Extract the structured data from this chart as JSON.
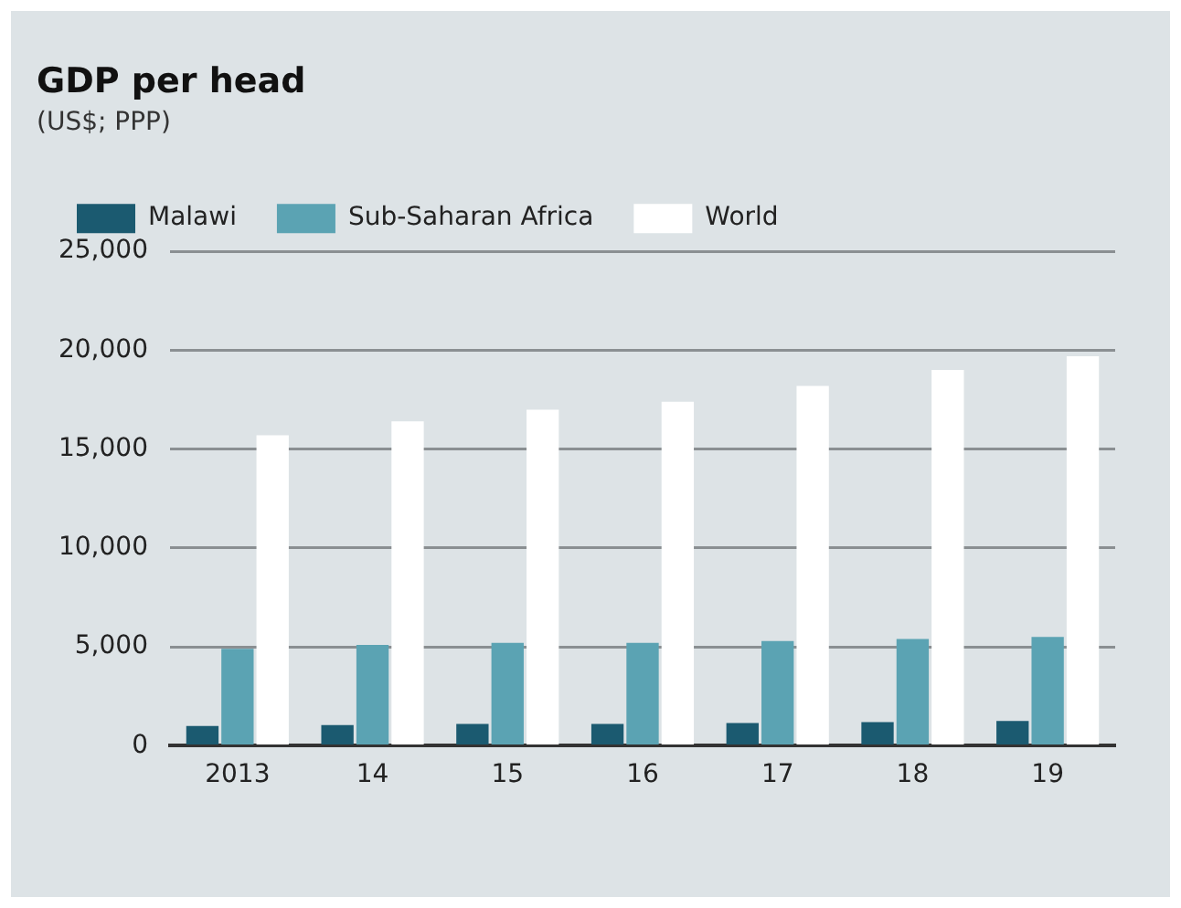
{
  "chart_data": {
    "type": "bar",
    "title": "GDP per head",
    "subtitle": "(US$; PPP)",
    "categories": [
      "2013",
      "14",
      "15",
      "16",
      "17",
      "18",
      "19"
    ],
    "series": [
      {
        "name": "Malawi",
        "color": "#1b5a70",
        "values": [
          1000,
          1050,
          1100,
          1100,
          1150,
          1200,
          1250
        ]
      },
      {
        "name": "Sub-Saharan Africa",
        "color": "#5ba3b3",
        "values": [
          4900,
          5100,
          5200,
          5200,
          5300,
          5400,
          5500
        ]
      },
      {
        "name": "World",
        "color": "#ffffff",
        "values": [
          15700,
          16400,
          17000,
          17400,
          18200,
          19000,
          19700
        ]
      }
    ],
    "ylim": [
      0,
      25000
    ],
    "yticks": [
      {
        "value": 0,
        "label": "0"
      },
      {
        "value": 5000,
        "label": "5,000"
      },
      {
        "value": 10000,
        "label": "10,000"
      },
      {
        "value": 15000,
        "label": "15,000"
      },
      {
        "value": 20000,
        "label": "20,000"
      },
      {
        "value": 25000,
        "label": "25,000"
      }
    ],
    "grid": "y",
    "legend": "top left"
  }
}
